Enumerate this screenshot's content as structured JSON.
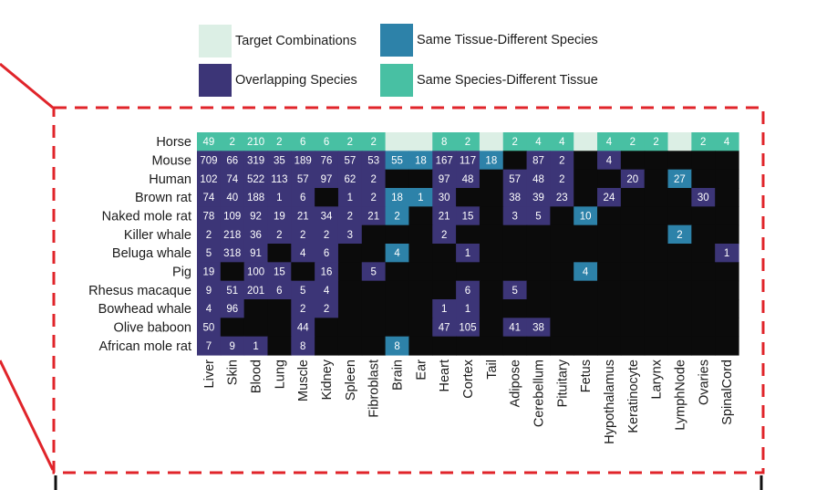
{
  "chart_data": {
    "type": "heatmap",
    "title": "",
    "legend": [
      {
        "label": "Target Combinations",
        "color": "#dcefe5"
      },
      {
        "label": "Same Tissue-Different Species",
        "color": "#2d82a9"
      },
      {
        "label": "Overlapping Species",
        "color": "#3c3577"
      },
      {
        "label": "Same Species-Different Tissue",
        "color": "#48c0a3"
      }
    ],
    "colors": {
      "none": "#0b0b0b",
      "target": "#dcefe5",
      "same_tissue": "#2d82a9",
      "overlap": "#3c3577",
      "same_species": "#48c0a3",
      "frame": "#e0242a"
    },
    "columns": [
      "Liver",
      "Skin",
      "Blood",
      "Lung",
      "Muscle",
      "Kidney",
      "Spleen",
      "Fibroblast",
      "Brain",
      "Ear",
      "Heart",
      "Cortex",
      "Tail",
      "Adipose",
      "Cerebellum",
      "Pituitary",
      "Fetus",
      "Hypothalamus",
      "Keratinocyte",
      "Larynx",
      "LymphNode",
      "Ovaries",
      "SpinalCord"
    ],
    "rows": [
      {
        "species": "Horse",
        "values": [
          "49",
          "2",
          "210",
          "2",
          "6",
          "6",
          "2",
          "2",
          "",
          "",
          "8",
          "2",
          "",
          "2",
          "4",
          "4",
          "",
          "4",
          "2",
          "2",
          "",
          "2",
          "4"
        ],
        "types": [
          "same_species",
          "same_species",
          "same_species",
          "same_species",
          "same_species",
          "same_species",
          "same_species",
          "same_species",
          "target",
          "target",
          "same_species",
          "same_species",
          "target",
          "same_species",
          "same_species",
          "same_species",
          "target",
          "same_species",
          "same_species",
          "same_species",
          "target",
          "same_species",
          "same_species"
        ]
      },
      {
        "species": "Mouse",
        "values": [
          "709",
          "66",
          "319",
          "35",
          "189",
          "76",
          "57",
          "53",
          "55",
          "18",
          "167",
          "117",
          "18",
          "",
          "87",
          "2",
          "",
          "4",
          "",
          "",
          "",
          "",
          ""
        ],
        "types": [
          "overlap",
          "overlap",
          "overlap",
          "overlap",
          "overlap",
          "overlap",
          "overlap",
          "overlap",
          "same_tissue",
          "same_tissue",
          "overlap",
          "overlap",
          "same_tissue",
          "none",
          "overlap",
          "overlap",
          "none",
          "overlap",
          "none",
          "none",
          "none",
          "none",
          "none"
        ]
      },
      {
        "species": "Human",
        "values": [
          "102",
          "74",
          "522",
          "113",
          "57",
          "97",
          "62",
          "2",
          "",
          "",
          "97",
          "48",
          "",
          "57",
          "48",
          "2",
          "",
          "",
          "20",
          "",
          "27",
          "",
          ""
        ],
        "types": [
          "overlap",
          "overlap",
          "overlap",
          "overlap",
          "overlap",
          "overlap",
          "overlap",
          "overlap",
          "none",
          "none",
          "overlap",
          "overlap",
          "none",
          "overlap",
          "overlap",
          "overlap",
          "none",
          "none",
          "overlap",
          "none",
          "same_tissue",
          "none",
          "none"
        ]
      },
      {
        "species": "Brown rat",
        "values": [
          "74",
          "40",
          "188",
          "1",
          "6",
          "",
          "1",
          "2",
          "18",
          "1",
          "30",
          "",
          "",
          "38",
          "39",
          "23",
          "",
          "24",
          "",
          "",
          "",
          "30",
          ""
        ],
        "types": [
          "overlap",
          "overlap",
          "overlap",
          "overlap",
          "overlap",
          "none",
          "overlap",
          "overlap",
          "same_tissue",
          "same_tissue",
          "overlap",
          "none",
          "none",
          "overlap",
          "overlap",
          "overlap",
          "none",
          "overlap",
          "none",
          "none",
          "none",
          "overlap",
          "none"
        ]
      },
      {
        "species": "Naked mole rat",
        "values": [
          "78",
          "109",
          "92",
          "19",
          "21",
          "34",
          "2",
          "21",
          "2",
          "",
          "21",
          "15",
          "",
          "3",
          "5",
          "",
          "10",
          "",
          "",
          "",
          "",
          "",
          ""
        ],
        "types": [
          "overlap",
          "overlap",
          "overlap",
          "overlap",
          "overlap",
          "overlap",
          "overlap",
          "overlap",
          "same_tissue",
          "none",
          "overlap",
          "overlap",
          "none",
          "overlap",
          "overlap",
          "none",
          "same_tissue",
          "none",
          "none",
          "none",
          "none",
          "none",
          "none"
        ]
      },
      {
        "species": "Killer whale",
        "values": [
          "2",
          "218",
          "36",
          "2",
          "2",
          "2",
          "3",
          "",
          "",
          "",
          "2",
          "",
          "",
          "",
          "",
          "",
          "",
          "",
          "",
          "",
          "2",
          "",
          ""
        ],
        "types": [
          "overlap",
          "overlap",
          "overlap",
          "overlap",
          "overlap",
          "overlap",
          "overlap",
          "none",
          "none",
          "none",
          "overlap",
          "none",
          "none",
          "none",
          "none",
          "none",
          "none",
          "none",
          "none",
          "none",
          "same_tissue",
          "none",
          "none"
        ]
      },
      {
        "species": "Beluga whale",
        "values": [
          "5",
          "318",
          "91",
          "",
          "4",
          "6",
          "",
          "",
          "4",
          "",
          "",
          "1",
          "",
          "",
          "",
          "",
          "",
          "",
          "",
          "",
          "",
          "",
          "1"
        ],
        "types": [
          "overlap",
          "overlap",
          "overlap",
          "none",
          "overlap",
          "overlap",
          "none",
          "none",
          "same_tissue",
          "none",
          "none",
          "overlap",
          "none",
          "none",
          "none",
          "none",
          "none",
          "none",
          "none",
          "none",
          "none",
          "none",
          "overlap"
        ]
      },
      {
        "species": "Pig",
        "values": [
          "19",
          "",
          "100",
          "15",
          "",
          "16",
          "",
          "5",
          "",
          "",
          "",
          "",
          "",
          "",
          "",
          "",
          "4",
          "",
          "",
          "",
          "",
          "",
          ""
        ],
        "types": [
          "overlap",
          "none",
          "overlap",
          "overlap",
          "none",
          "overlap",
          "none",
          "overlap",
          "none",
          "none",
          "none",
          "none",
          "none",
          "none",
          "none",
          "none",
          "same_tissue",
          "none",
          "none",
          "none",
          "none",
          "none",
          "none"
        ]
      },
      {
        "species": "Rhesus macaque",
        "values": [
          "9",
          "51",
          "201",
          "6",
          "5",
          "4",
          "",
          "",
          "",
          "",
          "",
          "6",
          "",
          "5",
          "",
          "",
          "",
          "",
          "",
          "",
          "",
          "",
          ""
        ],
        "types": [
          "overlap",
          "overlap",
          "overlap",
          "overlap",
          "overlap",
          "overlap",
          "none",
          "none",
          "none",
          "none",
          "none",
          "overlap",
          "none",
          "overlap",
          "none",
          "none",
          "none",
          "none",
          "none",
          "none",
          "none",
          "none",
          "none"
        ]
      },
      {
        "species": "Bowhead whale",
        "values": [
          "4",
          "96",
          "",
          "",
          "2",
          "2",
          "",
          "",
          "",
          "",
          "1",
          "1",
          "",
          "",
          "",
          "",
          "",
          "",
          "",
          "",
          "",
          "",
          ""
        ],
        "types": [
          "overlap",
          "overlap",
          "none",
          "none",
          "overlap",
          "overlap",
          "none",
          "none",
          "none",
          "none",
          "overlap",
          "overlap",
          "none",
          "none",
          "none",
          "none",
          "none",
          "none",
          "none",
          "none",
          "none",
          "none",
          "none"
        ]
      },
      {
        "species": "Olive baboon",
        "values": [
          "50",
          "",
          "",
          "",
          "44",
          "",
          "",
          "",
          "",
          "",
          "47",
          "105",
          "",
          "41",
          "38",
          "",
          "",
          "",
          "",
          "",
          "",
          "",
          ""
        ],
        "types": [
          "overlap",
          "none",
          "none",
          "none",
          "overlap",
          "none",
          "none",
          "none",
          "none",
          "none",
          "overlap",
          "overlap",
          "none",
          "overlap",
          "overlap",
          "none",
          "none",
          "none",
          "none",
          "none",
          "none",
          "none",
          "none"
        ]
      },
      {
        "species": "African mole rat",
        "values": [
          "7",
          "9",
          "1",
          "",
          "8",
          "",
          "",
          "",
          "8",
          "",
          "",
          "",
          "",
          "",
          "",
          "",
          "",
          "",
          "",
          "",
          "",
          "",
          ""
        ],
        "types": [
          "overlap",
          "overlap",
          "overlap",
          "none",
          "overlap",
          "none",
          "none",
          "none",
          "same_tissue",
          "none",
          "none",
          "none",
          "none",
          "none",
          "none",
          "none",
          "none",
          "none",
          "none",
          "none",
          "none",
          "none",
          "none"
        ]
      }
    ]
  }
}
